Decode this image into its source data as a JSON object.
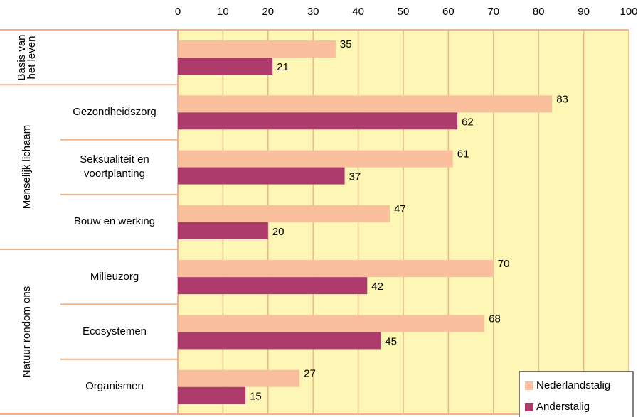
{
  "chart_data": {
    "type": "bar",
    "orientation": "horizontal",
    "groups": [
      {
        "label": "Basis van het leven",
        "start": 0,
        "count": 1
      },
      {
        "label": "Menselijk lichaam",
        "start": 1,
        "count": 3
      },
      {
        "label": "Natuur rondom ons",
        "start": 4,
        "count": 3
      }
    ],
    "categories": [
      null,
      "Gezondheidszorg",
      "Seksualiteit en voortplanting",
      "Bouw en werking",
      "Milieuzorg",
      "Ecosystemen",
      "Organismen"
    ],
    "series": [
      {
        "name": "Nederlandstalig",
        "color": "#fac09d",
        "values": [
          35,
          83,
          61,
          47,
          70,
          68,
          27
        ]
      },
      {
        "name": "Anderstalig",
        "color": "#ad3c6c",
        "values": [
          21,
          62,
          37,
          20,
          42,
          45,
          15
        ]
      }
    ],
    "xlim": [
      0,
      100
    ],
    "xticks": [
      0,
      10,
      20,
      30,
      40,
      50,
      60,
      70,
      80,
      90,
      100
    ],
    "grid": true,
    "legend": "lower right"
  }
}
